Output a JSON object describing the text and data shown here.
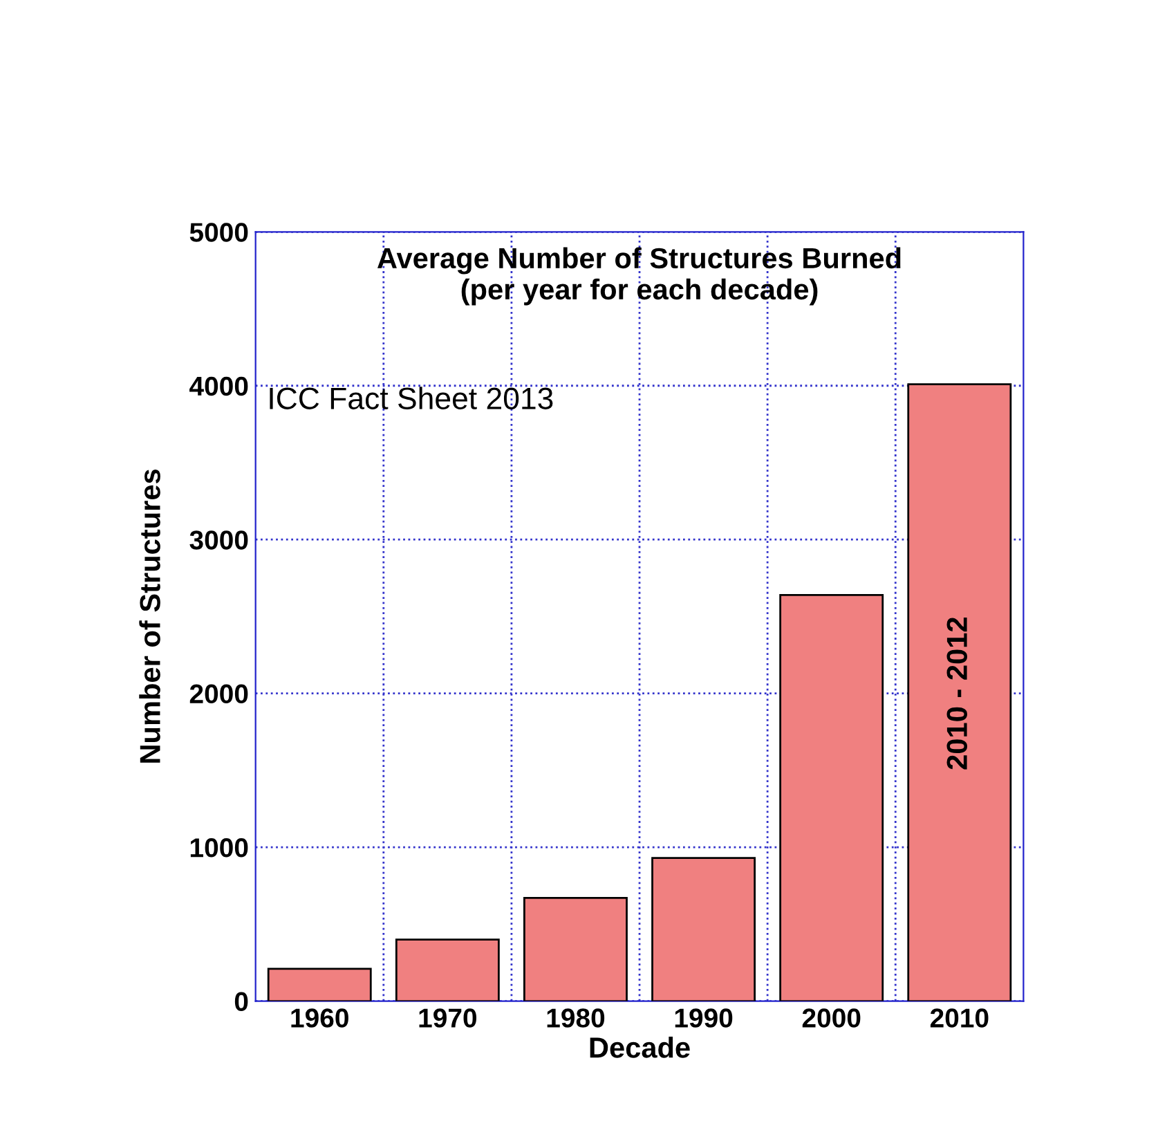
{
  "chart_data": {
    "type": "bar",
    "title": "Average Number of Structures Burned\n(per year for each decade)",
    "xlabel": "Decade",
    "ylabel": "Number of Structures",
    "categories": [
      "1960",
      "1970",
      "1980",
      "1990",
      "2000",
      "2010"
    ],
    "values": [
      210,
      400,
      670,
      930,
      2640,
      4010
    ],
    "color": "#f08080",
    "ylim": [
      0,
      5000
    ],
    "yticks": [
      0,
      1000,
      2000,
      3000,
      4000,
      5000
    ],
    "grid": true,
    "annotations": [
      "ICC Fact Sheet 2013",
      "2010 - 2012"
    ]
  }
}
